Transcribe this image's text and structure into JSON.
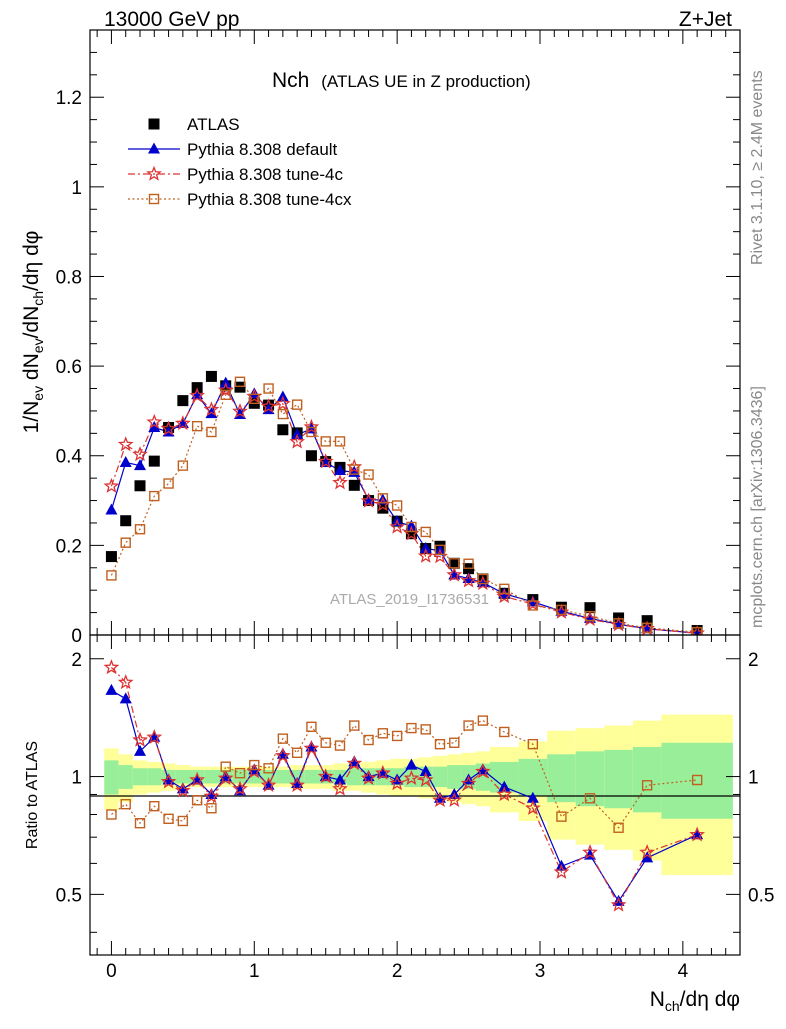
{
  "header": {
    "left": "13000 GeV pp",
    "right": "Z+Jet"
  },
  "side_labels": {
    "rivet": "Rivet 3.1.10, ≥ 2.4M events",
    "mcplots": "mcplots.cern.ch [arXiv:1306.3436]"
  },
  "watermark": "ATLAS_2019_I1736531",
  "chart_data": [
    {
      "type": "scatter",
      "panel": "main",
      "title": "Nch",
      "subtitle": "(ATLAS UE in Z production)",
      "ylabel": "1/N_ev dN_ev/dN_ch/dη dφ",
      "xlim": [
        -0.15,
        4.4
      ],
      "ylim": [
        0,
        1.35
      ],
      "yticks": [
        0,
        0.2,
        0.4,
        0.6,
        0.8,
        1,
        1.2
      ],
      "ytick_labels": [
        "0",
        "0.2",
        "0.4",
        "0.6",
        "0.8",
        "1",
        "1.2"
      ],
      "legend_position": "top-left",
      "series": [
        {
          "name": "ATLAS",
          "color": "#000000",
          "marker": "square-filled",
          "line": "none",
          "x": [
            0,
            0.1,
            0.2,
            0.3,
            0.4,
            0.5,
            0.6,
            0.7,
            0.8,
            0.9,
            1.0,
            1.1,
            1.2,
            1.3,
            1.4,
            1.5,
            1.6,
            1.7,
            1.8,
            1.9,
            2.0,
            2.1,
            2.2,
            2.3,
            2.4,
            2.5,
            2.6,
            2.75,
            2.95,
            3.15,
            3.35,
            3.55,
            3.75,
            4.1
          ],
          "y": [
            0.175,
            0.255,
            0.333,
            0.388,
            0.463,
            0.523,
            0.552,
            0.577,
            0.556,
            0.553,
            0.517,
            0.513,
            0.458,
            0.451,
            0.4,
            0.387,
            0.374,
            0.334,
            0.3,
            0.283,
            0.254,
            0.226,
            0.193,
            0.198,
            0.16,
            0.148,
            0.125,
            0.093,
            0.079,
            0.062,
            0.061,
            0.038,
            0.032,
            0.01
          ]
        },
        {
          "name": "Pythia 8.308 default",
          "color": "#0000cc",
          "marker": "triangle-filled",
          "line": "solid",
          "x": [
            0,
            0.1,
            0.2,
            0.3,
            0.4,
            0.5,
            0.6,
            0.7,
            0.8,
            0.9,
            1.0,
            1.1,
            1.2,
            1.3,
            1.4,
            1.5,
            1.6,
            1.7,
            1.8,
            1.9,
            2.0,
            2.1,
            2.2,
            2.3,
            2.4,
            2.5,
            2.6,
            2.75,
            2.95,
            3.15,
            3.35,
            3.55,
            3.75,
            4.1
          ],
          "y": [
            0.279,
            0.385,
            0.378,
            0.463,
            0.453,
            0.472,
            0.536,
            0.494,
            0.562,
            0.492,
            0.538,
            0.503,
            0.531,
            0.447,
            0.46,
            0.385,
            0.367,
            0.363,
            0.302,
            0.301,
            0.253,
            0.243,
            0.193,
            0.188,
            0.134,
            0.126,
            0.117,
            0.092,
            0.074,
            0.053,
            0.037,
            0.024,
            0.014,
            0.004
          ]
        },
        {
          "name": "Pythia 8.308 tune-4c",
          "color": "#dd3333",
          "marker": "star",
          "line": "dash-dot",
          "x": [
            0,
            0.1,
            0.2,
            0.3,
            0.4,
            0.5,
            0.6,
            0.7,
            0.8,
            0.9,
            1.0,
            1.1,
            1.2,
            1.3,
            1.4,
            1.5,
            1.6,
            1.7,
            1.8,
            1.9,
            2.0,
            2.1,
            2.2,
            2.3,
            2.4,
            2.5,
            2.6,
            2.75,
            2.95,
            3.15,
            3.35,
            3.55,
            3.75,
            4.1
          ],
          "y": [
            0.332,
            0.425,
            0.403,
            0.475,
            0.46,
            0.472,
            0.534,
            0.503,
            0.546,
            0.499,
            0.532,
            0.51,
            0.516,
            0.431,
            0.464,
            0.387,
            0.34,
            0.375,
            0.299,
            0.291,
            0.241,
            0.226,
            0.176,
            0.175,
            0.134,
            0.121,
            0.115,
            0.086,
            0.069,
            0.051,
            0.035,
            0.023,
            0.014,
            0.004
          ]
        },
        {
          "name": "Pythia 8.308 tune-4cx",
          "color": "#c06020",
          "marker": "square-open",
          "line": "dotted",
          "x": [
            0,
            0.1,
            0.2,
            0.3,
            0.4,
            0.5,
            0.6,
            0.7,
            0.8,
            0.9,
            1.0,
            1.1,
            1.2,
            1.3,
            1.4,
            1.5,
            1.6,
            1.7,
            1.8,
            1.9,
            2.0,
            2.1,
            2.2,
            2.3,
            2.4,
            2.5,
            2.6,
            2.75,
            2.95,
            3.15,
            3.35,
            3.55,
            3.75,
            4.1
          ],
          "y": [
            0.133,
            0.206,
            0.236,
            0.31,
            0.338,
            0.378,
            0.466,
            0.453,
            0.536,
            0.565,
            0.527,
            0.55,
            0.493,
            0.514,
            0.453,
            0.432,
            0.432,
            0.369,
            0.358,
            0.305,
            0.289,
            0.241,
            0.23,
            0.19,
            0.16,
            0.159,
            0.125,
            0.103,
            0.066,
            0.056,
            0.042,
            0.026,
            0.016,
            0.006
          ]
        }
      ]
    },
    {
      "type": "scatter",
      "panel": "ratio",
      "ylabel": "Ratio to ATLAS",
      "xlabel": "N_ch/dη dφ",
      "xlim": [
        -0.15,
        4.4
      ],
      "ylim": [
        0.35,
        2.3
      ],
      "xticks": [
        0,
        1,
        2,
        3,
        4
      ],
      "xtick_labels": [
        "0",
        "1",
        "2",
        "3",
        "4"
      ],
      "yticks": [
        0.5,
        1,
        2
      ],
      "ytick_labels": [
        "0.5",
        "1",
        "2"
      ],
      "bands": {
        "colors": {
          "stat": "#99ee99",
          "total": "#ffff99"
        },
        "edges": [
          -0.05,
          0.05,
          0.15,
          0.25,
          0.35,
          0.45,
          0.55,
          0.65,
          0.75,
          0.85,
          0.95,
          1.05,
          1.15,
          1.25,
          1.35,
          1.45,
          1.55,
          1.65,
          1.75,
          1.85,
          1.95,
          2.05,
          2.15,
          2.25,
          2.35,
          2.45,
          2.55,
          2.65,
          2.85,
          3.05,
          3.25,
          3.45,
          3.65,
          3.85,
          4.35
        ],
        "total_halfwidth": [
          0.18,
          0.14,
          0.1,
          0.09,
          0.08,
          0.07,
          0.06,
          0.06,
          0.06,
          0.06,
          0.06,
          0.06,
          0.06,
          0.07,
          0.07,
          0.07,
          0.08,
          0.08,
          0.09,
          0.1,
          0.11,
          0.11,
          0.12,
          0.13,
          0.14,
          0.15,
          0.16,
          0.19,
          0.23,
          0.31,
          0.33,
          0.35,
          0.39,
          0.44
        ],
        "stat_halfwidth": [
          0.1,
          0.07,
          0.05,
          0.05,
          0.04,
          0.04,
          0.04,
          0.04,
          0.04,
          0.04,
          0.04,
          0.04,
          0.04,
          0.04,
          0.04,
          0.04,
          0.04,
          0.05,
          0.05,
          0.05,
          0.05,
          0.06,
          0.06,
          0.06,
          0.07,
          0.07,
          0.08,
          0.09,
          0.11,
          0.14,
          0.16,
          0.17,
          0.19,
          0.22
        ]
      },
      "series": [
        {
          "name": "Pythia 8.308 default",
          "color": "#0000cc",
          "marker": "triangle-filled",
          "line": "solid",
          "x": [
            0,
            0.1,
            0.2,
            0.3,
            0.4,
            0.5,
            0.6,
            0.7,
            0.8,
            0.9,
            1.0,
            1.1,
            1.2,
            1.3,
            1.4,
            1.5,
            1.6,
            1.7,
            1.8,
            1.9,
            2.0,
            2.1,
            2.2,
            2.3,
            2.4,
            2.5,
            2.6,
            2.75,
            2.95,
            3.15,
            3.35,
            3.55,
            3.75,
            4.1
          ],
          "y": [
            1.66,
            1.58,
            1.16,
            1.26,
            0.98,
            0.93,
            0.98,
            0.9,
            1.0,
            0.92,
            1.04,
            0.95,
            1.14,
            0.96,
            1.19,
            1.0,
            0.98,
            1.09,
            1.0,
            1.02,
            0.98,
            1.07,
            1.03,
            0.88,
            0.9,
            0.98,
            1.04,
            0.94,
            0.88,
            0.59,
            0.63,
            0.48,
            0.62,
            0.71
          ]
        },
        {
          "name": "Pythia 8.308 tune-4c",
          "color": "#dd3333",
          "marker": "star",
          "line": "dash-dot",
          "x": [
            0,
            0.1,
            0.2,
            0.3,
            0.4,
            0.5,
            0.6,
            0.7,
            0.8,
            0.9,
            1.0,
            1.1,
            1.2,
            1.3,
            1.4,
            1.5,
            1.6,
            1.7,
            1.8,
            1.9,
            2.0,
            2.1,
            2.2,
            2.3,
            2.4,
            2.5,
            2.6,
            2.75,
            2.95,
            3.15,
            3.35,
            3.55,
            3.75,
            4.1
          ],
          "y": [
            1.9,
            1.74,
            1.24,
            1.26,
            0.97,
            0.92,
            0.98,
            0.89,
            0.99,
            0.93,
            1.03,
            0.95,
            1.13,
            0.95,
            1.18,
            1.0,
            0.93,
            1.08,
            0.99,
            1.02,
            0.96,
            0.99,
            0.98,
            0.87,
            0.87,
            0.96,
            1.03,
            0.9,
            0.83,
            0.57,
            0.64,
            0.47,
            0.64,
            0.71
          ]
        },
        {
          "name": "Pythia 8.308 tune-4cx",
          "color": "#c06020",
          "marker": "square-open",
          "line": "dotted",
          "x": [
            0,
            0.1,
            0.2,
            0.3,
            0.4,
            0.5,
            0.6,
            0.7,
            0.8,
            0.9,
            1.0,
            1.1,
            1.2,
            1.3,
            1.4,
            1.5,
            1.6,
            1.7,
            1.8,
            1.9,
            2.0,
            2.1,
            2.2,
            2.3,
            2.4,
            2.5,
            2.6,
            2.75,
            2.95,
            3.15,
            3.35,
            3.55,
            3.75,
            4.1
          ],
          "y": [
            0.8,
            0.85,
            0.76,
            0.84,
            0.78,
            0.77,
            0.87,
            0.83,
            1.06,
            1.02,
            1.07,
            1.05,
            1.25,
            1.15,
            1.34,
            1.22,
            1.2,
            1.35,
            1.24,
            1.29,
            1.27,
            1.33,
            1.32,
            1.21,
            1.22,
            1.35,
            1.39,
            1.3,
            1.21,
            0.79,
            0.88,
            0.74,
            0.95,
            0.98
          ]
        }
      ]
    }
  ]
}
